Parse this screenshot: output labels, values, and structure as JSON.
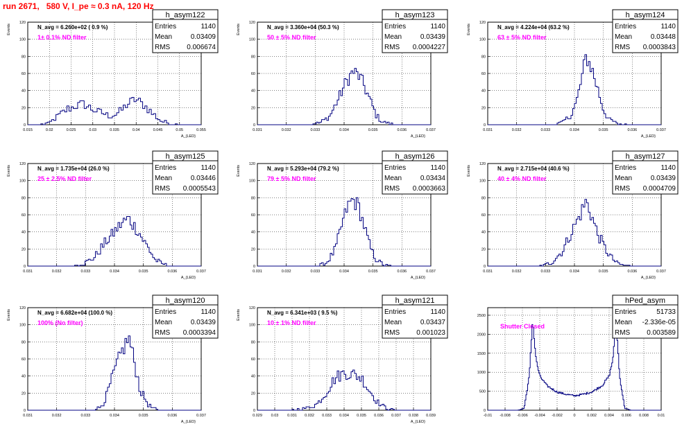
{
  "page": {
    "title": "run 2671,   580 V, I_pe ≈ 0.3 nA, 120 Hz"
  },
  "chart_data": [
    {
      "type": "histogram",
      "name": "h_asym122",
      "navg": "N_avg = 6.260e+02 ( 0.9 %)",
      "filter": "1± 0.1% ND filter",
      "stats": {
        "entries": "1140",
        "mean": "0.03409",
        "rms": "0.006674"
      },
      "xlabel": "A_{LED}",
      "ylabel": "Events",
      "xlim": [
        0.015,
        0.055
      ],
      "ylim": [
        0,
        120
      ],
      "grid": true,
      "xticks": [
        "0.015",
        "0.02",
        "0.025",
        "0.03",
        "0.035",
        "0.04",
        "0.045",
        "0.05",
        "0.055"
      ],
      "yticks": [
        "0",
        "20",
        "40",
        "60",
        "80",
        "100",
        "120"
      ],
      "bin_width": 0.0005,
      "profile": [
        [
          0.018,
          0
        ],
        [
          0.02,
          2
        ],
        [
          0.022,
          10
        ],
        [
          0.024,
          18
        ],
        [
          0.026,
          22
        ],
        [
          0.028,
          24
        ],
        [
          0.03,
          18
        ],
        [
          0.032,
          14
        ],
        [
          0.034,
          10
        ],
        [
          0.036,
          14
        ],
        [
          0.038,
          24
        ],
        [
          0.04,
          30
        ],
        [
          0.042,
          22
        ],
        [
          0.044,
          12
        ],
        [
          0.046,
          4
        ],
        [
          0.048,
          1
        ],
        [
          0.05,
          0
        ]
      ]
    },
    {
      "type": "histogram",
      "name": "h_asym123",
      "navg": "N_avg = 3.360e+04 (50.3 %)",
      "filter": "50 ± 5% ND filter",
      "stats": {
        "entries": "1140",
        "mean": "0.03439",
        "rms": "0.0004227"
      },
      "xlabel": "A_{LED}",
      "ylabel": "Events",
      "xlim": [
        0.031,
        0.037
      ],
      "ylim": [
        0,
        120
      ],
      "grid": true,
      "xticks": [
        "0.031",
        "0.032",
        "0.033",
        "0.034",
        "0.035",
        "0.036",
        "0.037"
      ],
      "yticks": [
        "0",
        "20",
        "40",
        "60",
        "80",
        "100",
        "120"
      ],
      "bin_width": 6e-05,
      "profile": [
        [
          0.0328,
          0
        ],
        [
          0.0332,
          3
        ],
        [
          0.0335,
          10
        ],
        [
          0.0338,
          30
        ],
        [
          0.0341,
          52
        ],
        [
          0.0343,
          62
        ],
        [
          0.0345,
          58
        ],
        [
          0.0347,
          45
        ],
        [
          0.0349,
          28
        ],
        [
          0.0351,
          12
        ],
        [
          0.0353,
          4
        ],
        [
          0.0356,
          1
        ],
        [
          0.0358,
          0
        ]
      ]
    },
    {
      "type": "histogram",
      "name": "h_asym124",
      "navg": "N_avg = 4.224e+04 (63.2 %)",
      "filter": "63 ± 5% ND filter",
      "stats": {
        "entries": "1140",
        "mean": "0.03448",
        "rms": "0.0003843"
      },
      "xlabel": "A_{LED}",
      "ylabel": "Events",
      "xlim": [
        0.031,
        0.037
      ],
      "ylim": [
        0,
        120
      ],
      "grid": true,
      "xticks": [
        "0.031",
        "0.032",
        "0.033",
        "0.034",
        "0.035",
        "0.036",
        "0.037"
      ],
      "yticks": [
        "0",
        "20",
        "40",
        "60",
        "80",
        "100",
        "120"
      ],
      "bin_width": 6e-05,
      "profile": [
        [
          0.0333,
          0
        ],
        [
          0.0336,
          3
        ],
        [
          0.0339,
          12
        ],
        [
          0.0341,
          30
        ],
        [
          0.0343,
          62
        ],
        [
          0.0344,
          80
        ],
        [
          0.0346,
          66
        ],
        [
          0.0348,
          42
        ],
        [
          0.035,
          18
        ],
        [
          0.0352,
          6
        ],
        [
          0.0355,
          1
        ],
        [
          0.0358,
          0
        ]
      ]
    },
    {
      "type": "histogram",
      "name": "h_asym125",
      "navg": "N_avg = 1.735e+04 (26.0 %)",
      "filter": "25 ± 2.5% ND filter",
      "stats": {
        "entries": "1140",
        "mean": "0.03446",
        "rms": "0.0005543"
      },
      "xlabel": "A_{LED}",
      "ylabel": "Events",
      "xlim": [
        0.031,
        0.037
      ],
      "ylim": [
        0,
        120
      ],
      "grid": true,
      "xticks": [
        "0.031",
        "0.032",
        "0.033",
        "0.034",
        "0.035",
        "0.036",
        "0.037"
      ],
      "yticks": [
        "0",
        "20",
        "40",
        "60",
        "80",
        "100",
        "120"
      ],
      "bin_width": 6e-05,
      "profile": [
        [
          0.0325,
          0
        ],
        [
          0.0329,
          2
        ],
        [
          0.0333,
          10
        ],
        [
          0.0337,
          28
        ],
        [
          0.034,
          40
        ],
        [
          0.0343,
          52
        ],
        [
          0.0345,
          55
        ],
        [
          0.0348,
          42
        ],
        [
          0.0351,
          25
        ],
        [
          0.0354,
          8
        ],
        [
          0.0357,
          2
        ],
        [
          0.036,
          0
        ]
      ]
    },
    {
      "type": "histogram",
      "name": "h_asym126",
      "navg": "N_avg = 5.293e+04 (79.2 %)",
      "filter": "79 ± 5% ND filter",
      "stats": {
        "entries": "1140",
        "mean": "0.03434",
        "rms": "0.0003663"
      },
      "xlabel": "A_{LED}",
      "ylabel": "Events",
      "xlim": [
        0.031,
        0.037
      ],
      "ylim": [
        0,
        120
      ],
      "grid": true,
      "xticks": [
        "0.031",
        "0.032",
        "0.033",
        "0.034",
        "0.035",
        "0.036",
        "0.037"
      ],
      "yticks": [
        "0",
        "20",
        "40",
        "60",
        "80",
        "100",
        "120"
      ],
      "bin_width": 6e-05,
      "profile": [
        [
          0.0331,
          0
        ],
        [
          0.0334,
          4
        ],
        [
          0.0337,
          20
        ],
        [
          0.0339,
          45
        ],
        [
          0.0341,
          68
        ],
        [
          0.0343,
          78
        ],
        [
          0.0345,
          70
        ],
        [
          0.0347,
          46
        ],
        [
          0.0349,
          22
        ],
        [
          0.0351,
          8
        ],
        [
          0.0354,
          1
        ],
        [
          0.0356,
          0
        ]
      ]
    },
    {
      "type": "histogram",
      "name": "h_asym127",
      "navg": "N_avg = 2.715e+04 (40.6 %)",
      "filter": "40 ± 4% ND filter",
      "stats": {
        "entries": "1140",
        "mean": "0.03439",
        "rms": "0.0004709"
      },
      "xlabel": "A_{LED}",
      "ylabel": "Events",
      "xlim": [
        0.031,
        0.037
      ],
      "ylim": [
        0,
        120
      ],
      "grid": true,
      "xticks": [
        "0.031",
        "0.032",
        "0.033",
        "0.034",
        "0.035",
        "0.036",
        "0.037"
      ],
      "yticks": [
        "0",
        "20",
        "40",
        "60",
        "80",
        "100",
        "120"
      ],
      "bin_width": 6e-05,
      "profile": [
        [
          0.0328,
          0
        ],
        [
          0.0332,
          4
        ],
        [
          0.0336,
          18
        ],
        [
          0.0339,
          40
        ],
        [
          0.0342,
          60
        ],
        [
          0.0344,
          76
        ],
        [
          0.0346,
          58
        ],
        [
          0.0348,
          38
        ],
        [
          0.0351,
          18
        ],
        [
          0.0354,
          5
        ],
        [
          0.0357,
          1
        ],
        [
          0.036,
          0
        ]
      ]
    },
    {
      "type": "histogram",
      "name": "h_asym120",
      "navg": "N_avg = 6.682e+04 (100.0 %)",
      "filter": "100% (No filter)",
      "stats": {
        "entries": "1140",
        "mean": "0.03439",
        "rms": "0.0003394"
      },
      "xlabel": "A_{LED}",
      "ylabel": "Events",
      "xlim": [
        0.031,
        0.037
      ],
      "ylim": [
        0,
        120
      ],
      "grid": true,
      "xticks": [
        "0.031",
        "0.032",
        "0.033",
        "0.034",
        "0.035",
        "0.036",
        "0.037"
      ],
      "yticks": [
        "0",
        "20",
        "40",
        "60",
        "80",
        "100",
        "120"
      ],
      "bin_width": 6e-05,
      "profile": [
        [
          0.0332,
          0
        ],
        [
          0.0335,
          3
        ],
        [
          0.0337,
          14
        ],
        [
          0.0339,
          35
        ],
        [
          0.0341,
          55
        ],
        [
          0.0343,
          72
        ],
        [
          0.0345,
          85
        ],
        [
          0.0347,
          55
        ],
        [
          0.0349,
          22
        ],
        [
          0.0352,
          5
        ],
        [
          0.0355,
          0
        ]
      ]
    },
    {
      "type": "histogram",
      "name": "h_asym121",
      "navg": "N_avg = 6.341e+03 ( 9.5 %)",
      "filter": "10 ± 1% ND filter",
      "stats": {
        "entries": "1140",
        "mean": "0.03437",
        "rms": "0.001023"
      },
      "xlabel": "A_{LED}",
      "ylabel": "Events",
      "xlim": [
        0.029,
        0.039
      ],
      "ylim": [
        0,
        120
      ],
      "grid": true,
      "xticks": [
        "0.029",
        "0.03",
        "0.031",
        "0.032",
        "0.033",
        "0.034",
        "0.035",
        "0.036",
        "0.037",
        "0.038",
        "0.039"
      ],
      "yticks": [
        "0",
        "20",
        "40",
        "60",
        "80",
        "100",
        "120"
      ],
      "bin_width": 0.0001,
      "profile": [
        [
          0.031,
          0
        ],
        [
          0.0318,
          2
        ],
        [
          0.0325,
          8
        ],
        [
          0.033,
          22
        ],
        [
          0.0335,
          38
        ],
        [
          0.034,
          44
        ],
        [
          0.0345,
          42
        ],
        [
          0.035,
          38
        ],
        [
          0.0355,
          22
        ],
        [
          0.036,
          8
        ],
        [
          0.0365,
          2
        ],
        [
          0.037,
          0
        ]
      ]
    },
    {
      "type": "histogram",
      "name": "hPed_asym",
      "navg": "",
      "filter": "Shutter Closed",
      "stats": {
        "entries": "51733",
        "mean": "-2.336e-05",
        "rms": "0.003589"
      },
      "xlabel": "",
      "ylabel": "",
      "xlim": [
        -0.01,
        0.01
      ],
      "ylim": [
        0,
        2700
      ],
      "grid": true,
      "xticks": [
        "-0.01",
        "-0.008",
        "-0.006",
        "-0.004",
        "-0.002",
        "0",
        "0.002",
        "0.004",
        "0.006",
        "0.008",
        "0.01"
      ],
      "yticks": [
        "0",
        "500",
        "1000",
        "1500",
        "2000",
        "2500"
      ],
      "bin_width": 0.0001,
      "profile": [
        [
          -0.0065,
          0
        ],
        [
          -0.0058,
          50
        ],
        [
          -0.0052,
          900
        ],
        [
          -0.0048,
          2450
        ],
        [
          -0.0047,
          2000
        ],
        [
          -0.0044,
          1300
        ],
        [
          -0.004,
          900
        ],
        [
          -0.0032,
          650
        ],
        [
          -0.002,
          480
        ],
        [
          -0.001,
          420
        ],
        [
          0,
          380
        ],
        [
          0.001,
          420
        ],
        [
          0.002,
          480
        ],
        [
          0.0032,
          650
        ],
        [
          0.004,
          900
        ],
        [
          0.0044,
          1300
        ],
        [
          0.0047,
          2000
        ],
        [
          0.0048,
          2450
        ],
        [
          0.0052,
          900
        ],
        [
          0.0058,
          50
        ],
        [
          0.0065,
          0
        ]
      ]
    }
  ],
  "stats_labels": {
    "entries": "Entries",
    "mean": "Mean",
    "rms": "RMS"
  }
}
